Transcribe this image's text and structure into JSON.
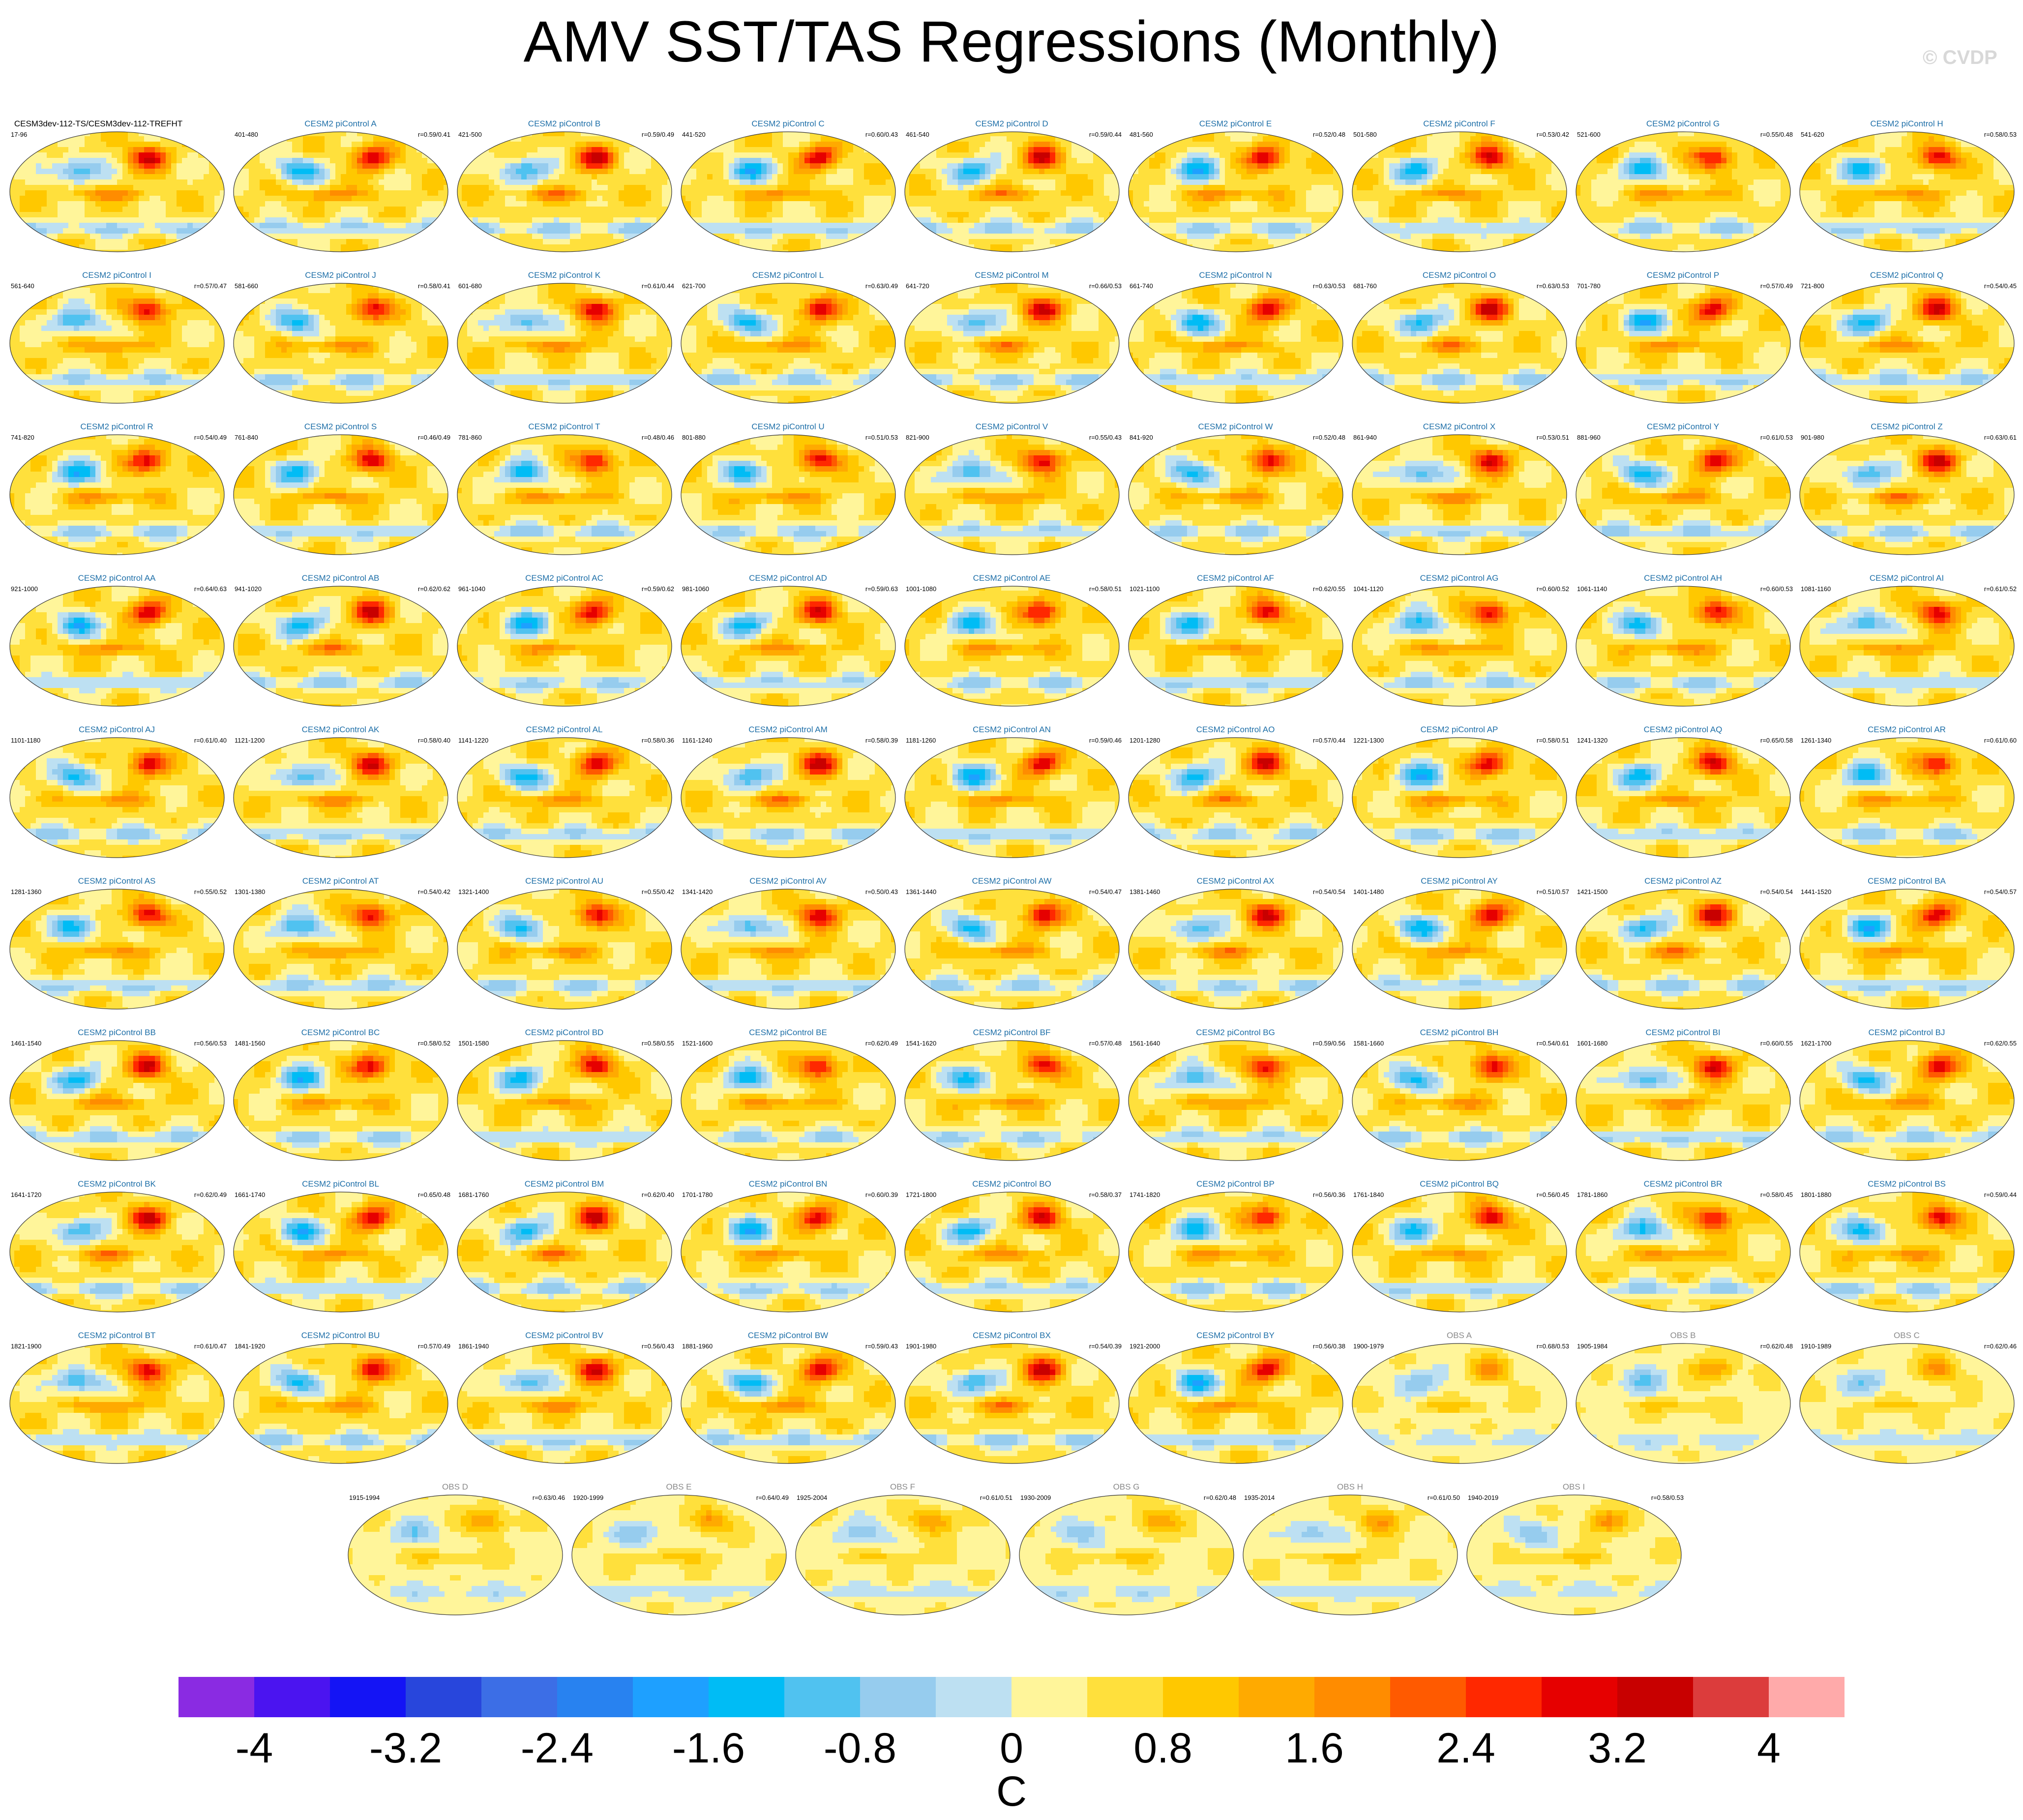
{
  "title": "AMV SST/TAS Regressions (Monthly)",
  "watermark": "© CVDP",
  "map_type": "global ellipse-projection regression maps of SST/TAS onto AMV",
  "panels": [
    {
      "label": "CESM3dev-112-TS/CESM3dev-112-TREFHT",
      "years": "17-96",
      "r": "",
      "style": "main"
    },
    {
      "label": "CESM2 piControl A",
      "years": "401-480",
      "r": "r=0.59/0.41",
      "style": "model"
    },
    {
      "label": "CESM2 piControl B",
      "years": "421-500",
      "r": "r=0.59/0.49",
      "style": "model"
    },
    {
      "label": "CESM2 piControl C",
      "years": "441-520",
      "r": "r=0.60/0.43",
      "style": "model"
    },
    {
      "label": "CESM2 piControl D",
      "years": "461-540",
      "r": "r=0.59/0.44",
      "style": "model"
    },
    {
      "label": "CESM2 piControl E",
      "years": "481-560",
      "r": "r=0.52/0.48",
      "style": "model"
    },
    {
      "label": "CESM2 piControl F",
      "years": "501-580",
      "r": "r=0.53/0.42",
      "style": "model"
    },
    {
      "label": "CESM2 piControl G",
      "years": "521-600",
      "r": "r=0.55/0.48",
      "style": "model"
    },
    {
      "label": "CESM2 piControl H",
      "years": "541-620",
      "r": "r=0.58/0.53",
      "style": "model"
    },
    {
      "label": "CESM2 piControl I",
      "years": "561-640",
      "r": "r=0.57/0.47",
      "style": "model"
    },
    {
      "label": "CESM2 piControl J",
      "years": "581-660",
      "r": "r=0.58/0.41",
      "style": "model"
    },
    {
      "label": "CESM2 piControl K",
      "years": "601-680",
      "r": "r=0.61/0.44",
      "style": "model"
    },
    {
      "label": "CESM2 piControl L",
      "years": "621-700",
      "r": "r=0.63/0.49",
      "style": "model"
    },
    {
      "label": "CESM2 piControl M",
      "years": "641-720",
      "r": "r=0.66/0.53",
      "style": "model"
    },
    {
      "label": "CESM2 piControl N",
      "years": "661-740",
      "r": "r=0.63/0.53",
      "style": "model"
    },
    {
      "label": "CESM2 piControl O",
      "years": "681-760",
      "r": "r=0.63/0.53",
      "style": "model"
    },
    {
      "label": "CESM2 piControl P",
      "years": "701-780",
      "r": "r=0.57/0.49",
      "style": "model"
    },
    {
      "label": "CESM2 piControl Q",
      "years": "721-800",
      "r": "r=0.54/0.45",
      "style": "model"
    },
    {
      "label": "CESM2 piControl R",
      "years": "741-820",
      "r": "r=0.54/0.49",
      "style": "model"
    },
    {
      "label": "CESM2 piControl S",
      "years": "761-840",
      "r": "r=0.46/0.49",
      "style": "model"
    },
    {
      "label": "CESM2 piControl T",
      "years": "781-860",
      "r": "r=0.48/0.46",
      "style": "model"
    },
    {
      "label": "CESM2 piControl U",
      "years": "801-880",
      "r": "r=0.51/0.53",
      "style": "model"
    },
    {
      "label": "CESM2 piControl V",
      "years": "821-900",
      "r": "r=0.55/0.43",
      "style": "model"
    },
    {
      "label": "CESM2 piControl W",
      "years": "841-920",
      "r": "r=0.52/0.48",
      "style": "model"
    },
    {
      "label": "CESM2 piControl X",
      "years": "861-940",
      "r": "r=0.53/0.51",
      "style": "model"
    },
    {
      "label": "CESM2 piControl Y",
      "years": "881-960",
      "r": "r=0.61/0.53",
      "style": "model"
    },
    {
      "label": "CESM2 piControl Z",
      "years": "901-980",
      "r": "r=0.63/0.61",
      "style": "model"
    },
    {
      "label": "CESM2 piControl AA",
      "years": "921-1000",
      "r": "r=0.64/0.63",
      "style": "model"
    },
    {
      "label": "CESM2 piControl AB",
      "years": "941-1020",
      "r": "r=0.62/0.62",
      "style": "model"
    },
    {
      "label": "CESM2 piControl AC",
      "years": "961-1040",
      "r": "r=0.59/0.62",
      "style": "model"
    },
    {
      "label": "CESM2 piControl AD",
      "years": "981-1060",
      "r": "r=0.59/0.63",
      "style": "model"
    },
    {
      "label": "CESM2 piControl AE",
      "years": "1001-1080",
      "r": "r=0.58/0.51",
      "style": "model"
    },
    {
      "label": "CESM2 piControl AF",
      "years": "1021-1100",
      "r": "r=0.62/0.55",
      "style": "model"
    },
    {
      "label": "CESM2 piControl AG",
      "years": "1041-1120",
      "r": "r=0.60/0.52",
      "style": "model"
    },
    {
      "label": "CESM2 piControl AH",
      "years": "1061-1140",
      "r": "r=0.60/0.53",
      "style": "model"
    },
    {
      "label": "CESM2 piControl AI",
      "years": "1081-1160",
      "r": "r=0.61/0.52",
      "style": "model"
    },
    {
      "label": "CESM2 piControl AJ",
      "years": "1101-1180",
      "r": "r=0.61/0.40",
      "style": "model"
    },
    {
      "label": "CESM2 piControl AK",
      "years": "1121-1200",
      "r": "r=0.58/0.40",
      "style": "model"
    },
    {
      "label": "CESM2 piControl AL",
      "years": "1141-1220",
      "r": "r=0.58/0.36",
      "style": "model"
    },
    {
      "label": "CESM2 piControl AM",
      "years": "1161-1240",
      "r": "r=0.58/0.39",
      "style": "model"
    },
    {
      "label": "CESM2 piControl AN",
      "years": "1181-1260",
      "r": "r=0.59/0.46",
      "style": "model"
    },
    {
      "label": "CESM2 piControl AO",
      "years": "1201-1280",
      "r": "r=0.57/0.44",
      "style": "model"
    },
    {
      "label": "CESM2 piControl AP",
      "years": "1221-1300",
      "r": "r=0.58/0.51",
      "style": "model"
    },
    {
      "label": "CESM2 piControl AQ",
      "years": "1241-1320",
      "r": "r=0.65/0.58",
      "style": "model"
    },
    {
      "label": "CESM2 piControl AR",
      "years": "1261-1340",
      "r": "r=0.61/0.60",
      "style": "model"
    },
    {
      "label": "CESM2 piControl AS",
      "years": "1281-1360",
      "r": "r=0.55/0.52",
      "style": "model"
    },
    {
      "label": "CESM2 piControl AT",
      "years": "1301-1380",
      "r": "r=0.54/0.42",
      "style": "model"
    },
    {
      "label": "CESM2 piControl AU",
      "years": "1321-1400",
      "r": "r=0.55/0.42",
      "style": "model"
    },
    {
      "label": "CESM2 piControl AV",
      "years": "1341-1420",
      "r": "r=0.50/0.43",
      "style": "model"
    },
    {
      "label": "CESM2 piControl AW",
      "years": "1361-1440",
      "r": "r=0.54/0.47",
      "style": "model"
    },
    {
      "label": "CESM2 piControl AX",
      "years": "1381-1460",
      "r": "r=0.54/0.54",
      "style": "model"
    },
    {
      "label": "CESM2 piControl AY",
      "years": "1401-1480",
      "r": "r=0.51/0.57",
      "style": "model"
    },
    {
      "label": "CESM2 piControl AZ",
      "years": "1421-1500",
      "r": "r=0.54/0.54",
      "style": "model"
    },
    {
      "label": "CESM2 piControl BA",
      "years": "1441-1520",
      "r": "r=0.54/0.57",
      "style": "model"
    },
    {
      "label": "CESM2 piControl BB",
      "years": "1461-1540",
      "r": "r=0.56/0.53",
      "style": "model"
    },
    {
      "label": "CESM2 piControl BC",
      "years": "1481-1560",
      "r": "r=0.58/0.52",
      "style": "model"
    },
    {
      "label": "CESM2 piControl BD",
      "years": "1501-1580",
      "r": "r=0.58/0.55",
      "style": "model"
    },
    {
      "label": "CESM2 piControl BE",
      "years": "1521-1600",
      "r": "r=0.62/0.49",
      "style": "model"
    },
    {
      "label": "CESM2 piControl BF",
      "years": "1541-1620",
      "r": "r=0.57/0.48",
      "style": "model"
    },
    {
      "label": "CESM2 piControl BG",
      "years": "1561-1640",
      "r": "r=0.59/0.56",
      "style": "model"
    },
    {
      "label": "CESM2 piControl BH",
      "years": "1581-1660",
      "r": "r=0.54/0.61",
      "style": "model"
    },
    {
      "label": "CESM2 piControl BI",
      "years": "1601-1680",
      "r": "r=0.60/0.55",
      "style": "model"
    },
    {
      "label": "CESM2 piControl BJ",
      "years": "1621-1700",
      "r": "r=0.62/0.55",
      "style": "model"
    },
    {
      "label": "CESM2 piControl BK",
      "years": "1641-1720",
      "r": "r=0.62/0.49",
      "style": "model"
    },
    {
      "label": "CESM2 piControl BL",
      "years": "1661-1740",
      "r": "r=0.65/0.48",
      "style": "model"
    },
    {
      "label": "CESM2 piControl BM",
      "years": "1681-1760",
      "r": "r=0.62/0.40",
      "style": "model"
    },
    {
      "label": "CESM2 piControl BN",
      "years": "1701-1780",
      "r": "r=0.60/0.39",
      "style": "model"
    },
    {
      "label": "CESM2 piControl BO",
      "years": "1721-1800",
      "r": "r=0.58/0.37",
      "style": "model"
    },
    {
      "label": "CESM2 piControl BP",
      "years": "1741-1820",
      "r": "r=0.56/0.36",
      "style": "model"
    },
    {
      "label": "CESM2 piControl BQ",
      "years": "1761-1840",
      "r": "r=0.56/0.45",
      "style": "model"
    },
    {
      "label": "CESM2 piControl BR",
      "years": "1781-1860",
      "r": "r=0.58/0.45",
      "style": "model"
    },
    {
      "label": "CESM2 piControl BS",
      "years": "1801-1880",
      "r": "r=0.59/0.44",
      "style": "model"
    },
    {
      "label": "CESM2 piControl BT",
      "years": "1821-1900",
      "r": "r=0.61/0.47",
      "style": "model"
    },
    {
      "label": "CESM2 piControl BU",
      "years": "1841-1920",
      "r": "r=0.57/0.49",
      "style": "model"
    },
    {
      "label": "CESM2 piControl BV",
      "years": "1861-1940",
      "r": "r=0.56/0.43",
      "style": "model"
    },
    {
      "label": "CESM2 piControl BW",
      "years": "1881-1960",
      "r": "r=0.59/0.43",
      "style": "model"
    },
    {
      "label": "CESM2 piControl BX",
      "years": "1901-1980",
      "r": "r=0.54/0.39",
      "style": "model"
    },
    {
      "label": "CESM2 piControl BY",
      "years": "1921-2000",
      "r": "r=0.56/0.38",
      "style": "model"
    },
    {
      "label": "OBS A",
      "years": "1900-1979",
      "r": "r=0.68/0.53",
      "style": "obs"
    },
    {
      "label": "OBS B",
      "years": "1905-1984",
      "r": "r=0.62/0.48",
      "style": "obs"
    },
    {
      "label": "OBS C",
      "years": "1910-1989",
      "r": "r=0.62/0.46",
      "style": "obs"
    },
    {
      "label": "OBS D",
      "years": "1915-1994",
      "r": "r=0.63/0.46",
      "style": "obs"
    },
    {
      "label": "OBS E",
      "years": "1920-1999",
      "r": "r=0.64/0.49",
      "style": "obs"
    },
    {
      "label": "OBS F",
      "years": "1925-2004",
      "r": "r=0.61/0.51",
      "style": "obs"
    },
    {
      "label": "OBS G",
      "years": "1930-2009",
      "r": "r=0.62/0.48",
      "style": "obs"
    },
    {
      "label": "OBS H",
      "years": "1935-2014",
      "r": "r=0.61/0.50",
      "style": "obs"
    },
    {
      "label": "OBS I",
      "years": "1940-2019",
      "r": "r=0.58/0.53",
      "style": "obs"
    }
  ],
  "colorbar": {
    "units": "C",
    "min": -4.4,
    "max": 4.4,
    "step": 0.4,
    "tick_labels": [
      "-4",
      "-3.2",
      "-2.4",
      "-1.6",
      "-0.8",
      "0",
      "0.8",
      "1.6",
      "2.4",
      "3.2",
      "4"
    ],
    "tick_values": [
      -4,
      -3.2,
      -2.4,
      -1.6,
      -0.8,
      0,
      0.8,
      1.6,
      2.4,
      3.2,
      4
    ],
    "colors": [
      "#8a2be2",
      "#4b14f0",
      "#1414f5",
      "#2846dc",
      "#3c6ee6",
      "#2882f0",
      "#1ea0ff",
      "#00bcf5",
      "#50c2f0",
      "#96ccee",
      "#bde0f2",
      "#fff59a",
      "#ffe03c",
      "#ffc800",
      "#ffaa00",
      "#ff8c00",
      "#ff5a00",
      "#ff2800",
      "#e60000",
      "#c80000",
      "#dc3c3c",
      "#ffaaaa"
    ]
  }
}
